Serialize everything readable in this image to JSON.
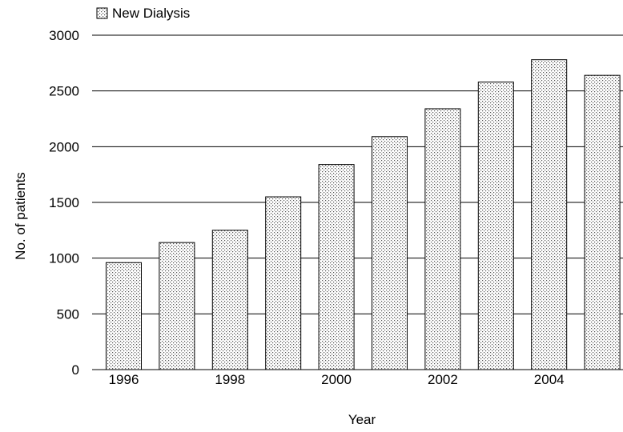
{
  "chart_data": {
    "type": "bar",
    "title": "",
    "xlabel": "Year",
    "ylabel": "No. of patients",
    "legend": {
      "position": "top-left",
      "entries": [
        "New Dialysis"
      ]
    },
    "categories": [
      "1996",
      "1997",
      "1998",
      "1999",
      "2000",
      "2001",
      "2002",
      "2003",
      "2004",
      "2005"
    ],
    "x_tick_labels": [
      "1996",
      "1998",
      "2000",
      "2002",
      "2004"
    ],
    "series": [
      {
        "name": "New Dialysis",
        "values": [
          960,
          1140,
          1250,
          1550,
          1840,
          2090,
          2340,
          2580,
          2780,
          2640
        ]
      }
    ],
    "ylim": [
      0,
      3000
    ],
    "y_ticks": [
      0,
      500,
      1000,
      1500,
      2000,
      2500,
      3000
    ],
    "grid": "horizontal",
    "bar_fill": "dotted",
    "colors": {
      "bar_fill": "#ffffff",
      "bar_dots": "#555555",
      "bar_edge": "#000000",
      "grid": "#000000"
    }
  }
}
